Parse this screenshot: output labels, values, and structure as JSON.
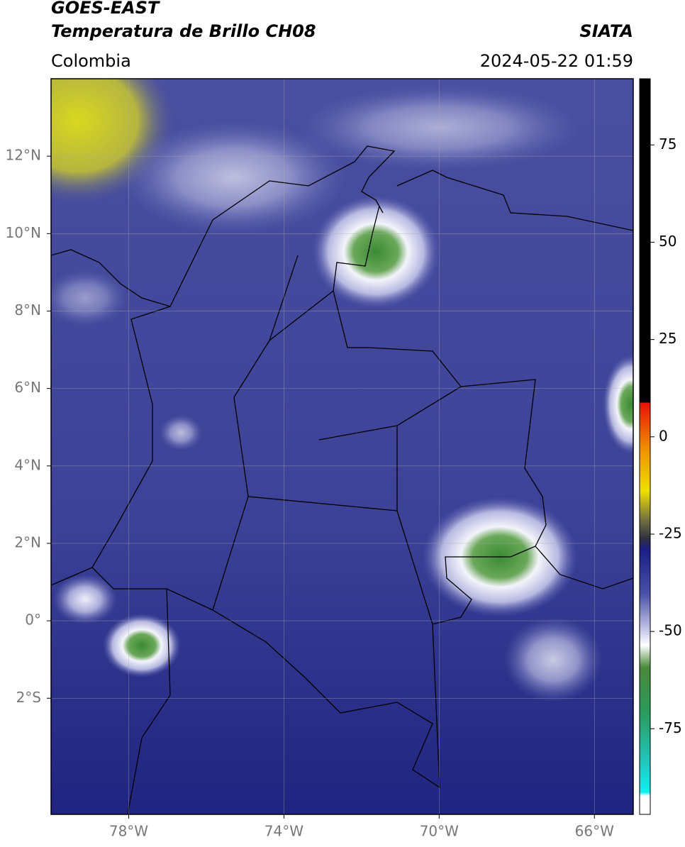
{
  "header": {
    "title": "GOES-EAST",
    "subtitle": "Temperatura de Brillo CH08",
    "region": "Colombia",
    "source": "SIATA",
    "datetime": "2024-05-22 01:59"
  },
  "map": {
    "lon_range": [
      -80,
      -65
    ],
    "lat_range": [
      -5,
      14
    ],
    "grid": true,
    "lat_ticks": [
      {
        "value": 12,
        "label": "12°N"
      },
      {
        "value": 10,
        "label": "10°N"
      },
      {
        "value": 8,
        "label": "8°N"
      },
      {
        "value": 6,
        "label": "6°N"
      },
      {
        "value": 4,
        "label": "4°N"
      },
      {
        "value": 2,
        "label": "2°N"
      },
      {
        "value": 0,
        "label": "0°"
      },
      {
        "value": -2,
        "label": "2°S"
      }
    ],
    "lon_ticks": [
      {
        "value": -78,
        "label": "78°W"
      },
      {
        "value": -74,
        "label": "74°W"
      },
      {
        "value": -70,
        "label": "70°W"
      },
      {
        "value": -66,
        "label": "66°W"
      }
    ]
  },
  "colorbar": {
    "range": [
      -97,
      92
    ],
    "ticks": [
      75,
      50,
      25,
      0,
      -25,
      -50,
      -75
    ]
  }
}
